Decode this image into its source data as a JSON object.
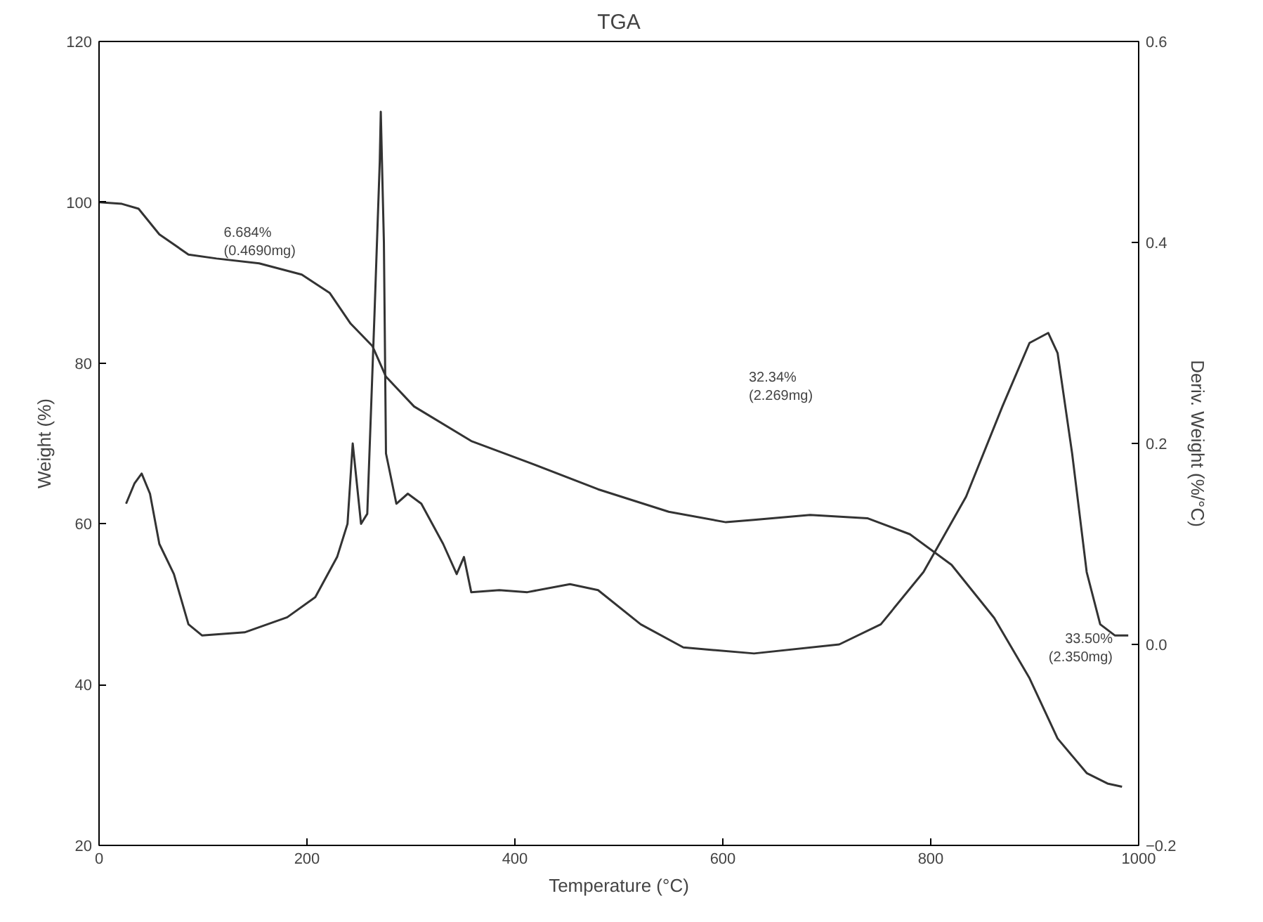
{
  "chart_data": {
    "type": "line",
    "title": "TGA",
    "xlabel": "Temperature (°C)",
    "ylabel": "Weight (%)",
    "y2label": "Deriv. Weight (%/°C)",
    "xlim": [
      0,
      1000
    ],
    "xticks": [
      0,
      200,
      400,
      600,
      800,
      1000
    ],
    "ylim": [
      20,
      120
    ],
    "yticks": [
      20,
      40,
      60,
      80,
      100,
      120
    ],
    "y2lim": [
      -0.2,
      0.6
    ],
    "y2ticks": [
      -0.2,
      {
        "value": 0,
        "label": "0.0"
      },
      0.2,
      0.4,
      0.6
    ],
    "grid": false,
    "marker": "none",
    "line_style": "solid",
    "series": [
      {
        "color": "#333333",
        "x": [
          0,
          22,
          38,
          58,
          86,
          113,
          154,
          195,
          222,
          242,
          263,
          276,
          303,
          358,
          412,
          480,
          548,
          603,
          630,
          684,
          739,
          780,
          820,
          861,
          895,
          922,
          950,
          970,
          984
        ],
        "values": [
          100,
          99.8,
          99.2,
          96,
          93.5,
          93,
          92.4,
          91,
          88.7,
          84.9,
          82.1,
          78.3,
          74.6,
          70.3,
          67.7,
          64.3,
          61.5,
          60.2,
          60.5,
          61.1,
          60.7,
          58.7,
          54.9,
          48.3,
          40.8,
          33.3,
          29,
          27.7,
          27.3
        ]
      },
      {
        "color": "#333333",
        "axis": "y2",
        "x": [
          26,
          34,
          41,
          49,
          58,
          72,
          86,
          99,
          140,
          181,
          208,
          229,
          239,
          244,
          252,
          258,
          265,
          270,
          271,
          274,
          276,
          286,
          297,
          310,
          331,
          344,
          351,
          358,
          385,
          412,
          453,
          480,
          521,
          562,
          630,
          712,
          752,
          793,
          834,
          869,
          895,
          913,
          922,
          936,
          950,
          963,
          977,
          990
        ],
        "values": [
          0.14,
          0.16,
          0.17,
          0.15,
          0.1,
          0.07,
          0.02,
          0.009,
          0.012,
          0.027,
          0.047,
          0.087,
          0.12,
          0.2,
          0.12,
          0.13,
          0.33,
          0.48,
          0.53,
          0.4,
          0.19,
          0.14,
          0.15,
          0.14,
          0.1,
          0.07,
          0.087,
          0.052,
          0.054,
          0.052,
          0.06,
          0.054,
          0.02,
          -0.003,
          -0.009,
          0,
          0.02,
          0.072,
          0.147,
          0.237,
          0.3,
          0.31,
          0.29,
          0.19,
          0.072,
          0.02,
          0.009,
          0.009
        ]
      }
    ],
    "annotations": [
      "6.684%\n(0.4690mg)",
      "32.34%\n(2.269mg)",
      "33.50%\n(2.350mg)"
    ]
  }
}
